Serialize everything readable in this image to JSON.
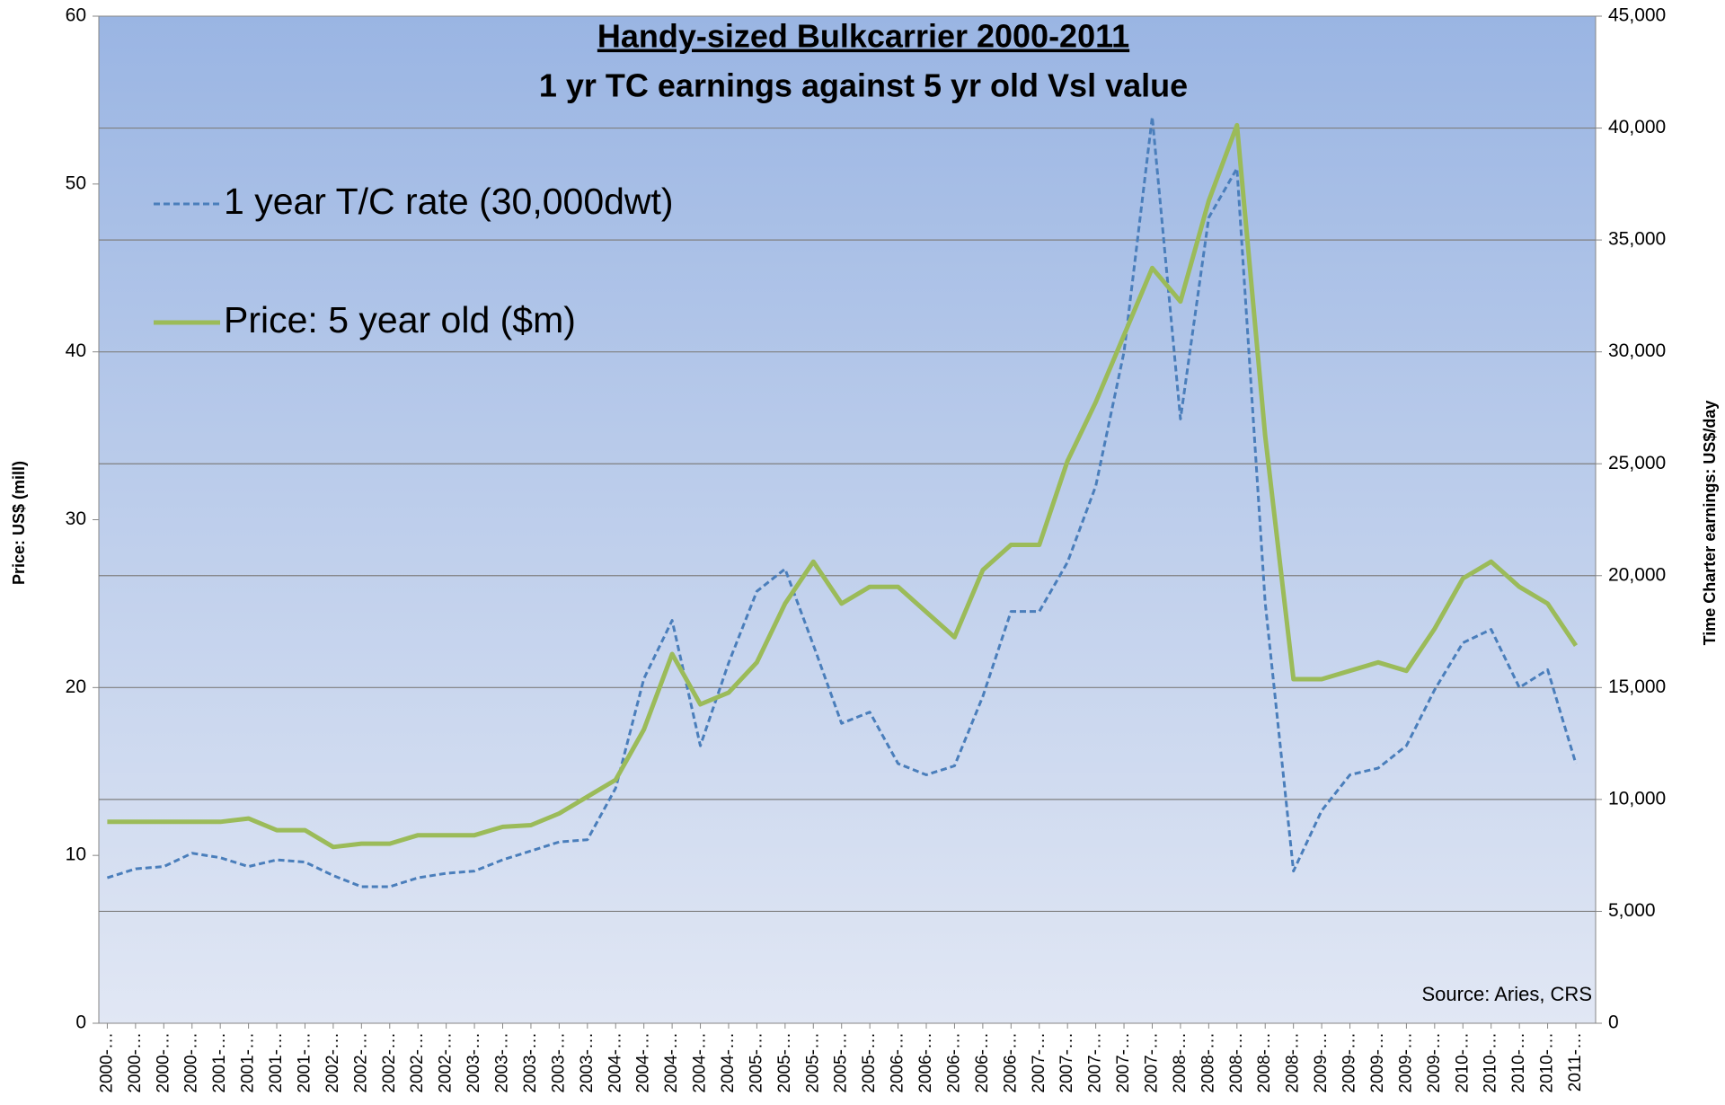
{
  "chart_data": {
    "type": "line",
    "title": "Handy-sized Bulkcarrier 2000-2011",
    "subtitle": "1 yr TC earnings against 5 yr old Vsl value",
    "y_label": "Price: US$ (mill)",
    "y2_label": "Time Charter earnings: US$/day",
    "annotation": "Source: Aries, CRS",
    "legend": "upper left",
    "categories": [
      "2000-…",
      "2000-…",
      "2000-…",
      "2000-…",
      "2001-…",
      "2001-…",
      "2001-…",
      "2001-…",
      "2002-…",
      "2002-…",
      "2002-…",
      "2002-…",
      "2002-…",
      "2003-…",
      "2003-…",
      "2003-…",
      "2003-…",
      "2003-…",
      "2004-…",
      "2004-…",
      "2004-…",
      "2004-…",
      "2004-…",
      "2005-…",
      "2005-…",
      "2005-…",
      "2005-…",
      "2005-…",
      "2006-…",
      "2006-…",
      "2006-…",
      "2006-…",
      "2006-…",
      "2007-…",
      "2007-…",
      "2007-…",
      "2007-…",
      "2007-…",
      "2008-…",
      "2008-…",
      "2008-…",
      "2008-…",
      "2008-…",
      "2009-…",
      "2009-…",
      "2009-…",
      "2009-…",
      "2009-…",
      "2010-…",
      "2010-…",
      "2010-…",
      "2010-…",
      "2011-…"
    ],
    "series": [
      {
        "name": "1 year T/C rate (30,000dwt)",
        "color": "#4a7ebb",
        "axis": "y2",
        "dashed": true,
        "values": [
          6500,
          6900,
          7000,
          7600,
          7400,
          7000,
          7300,
          7200,
          6600,
          6100,
          6100,
          6500,
          6700,
          6800,
          7300,
          7700,
          8100,
          8200,
          10500,
          15400,
          18000,
          12400,
          16100,
          19300,
          20300,
          16900,
          13400,
          13900,
          11600,
          11100,
          11500,
          14600,
          18400,
          18400,
          20600,
          24000,
          30000,
          40500,
          27000,
          36000,
          38200,
          18800,
          6800,
          9500,
          11100,
          11400,
          12400,
          14900,
          17000,
          17600,
          15000,
          15800,
          11600
        ]
      },
      {
        "name": "Price: 5 year old ($m)",
        "color": "#9bbb59",
        "axis": "y",
        "values": [
          12,
          12,
          12,
          12,
          12,
          12.2,
          11.5,
          11.5,
          10.5,
          10.7,
          10.7,
          11.2,
          11.2,
          11.2,
          11.7,
          11.8,
          12.5,
          13.5,
          14.5,
          17.5,
          22,
          19,
          19.7,
          21.5,
          25,
          27.5,
          25,
          26,
          26,
          24.5,
          23,
          27,
          28.5,
          28.5,
          33.5,
          37,
          41,
          45,
          43,
          49,
          53.5,
          35,
          20.5,
          20.5,
          21,
          21.5,
          21,
          23.5,
          26.5,
          27.5,
          26,
          25,
          22.5
        ]
      }
    ],
    "ylim": [
      0,
      60
    ],
    "yticks": [
      0,
      10,
      20,
      30,
      40,
      50,
      60
    ],
    "y2lim": [
      0,
      45000
    ],
    "y2ticks": [
      0,
      {
        "value": 5000,
        "label": "5,000"
      },
      {
        "value": 10000,
        "label": "10,000"
      },
      {
        "value": 15000,
        "label": "15,000"
      },
      {
        "value": 20000,
        "label": "20,000"
      },
      {
        "value": 25000,
        "label": "25,000"
      },
      {
        "value": 30000,
        "label": "30,000"
      },
      {
        "value": 35000,
        "label": "35,000"
      },
      {
        "value": 40000,
        "label": "40,000"
      },
      {
        "value": 45000,
        "label": "45,000"
      }
    ],
    "grid": true
  }
}
